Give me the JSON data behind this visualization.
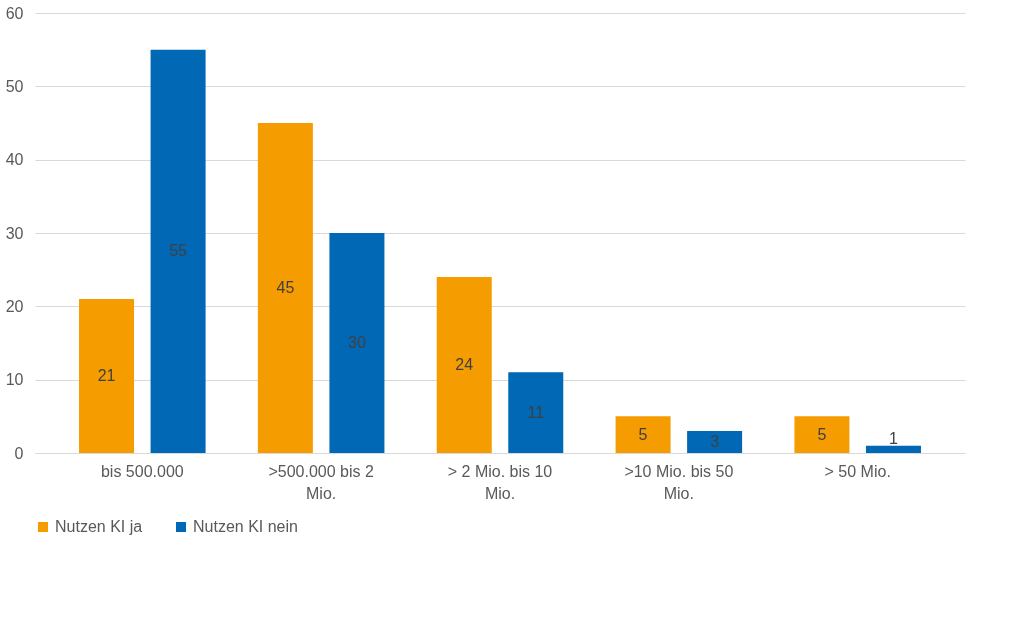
{
  "chart_data": {
    "type": "bar",
    "categories": [
      "bis 500.000",
      ">500.000 bis 2 Mio.",
      "> 2 Mio. bis 10 Mio.",
      ">10 Mio. bis 50 Mio.",
      "> 50 Mio."
    ],
    "series": [
      {
        "name": "Nutzen KI ja",
        "color": "#f59c00",
        "values": [
          21,
          45,
          24,
          5,
          5
        ]
      },
      {
        "name": "Nutzen KI nein",
        "color": "#0068b4",
        "values": [
          55,
          30,
          11,
          3,
          1
        ]
      }
    ],
    "ylim": [
      0,
      60
    ],
    "yticks": [
      0,
      10,
      20,
      30,
      40,
      50,
      60
    ],
    "grid": "y",
    "legend": "bottom",
    "data_labels": true
  }
}
